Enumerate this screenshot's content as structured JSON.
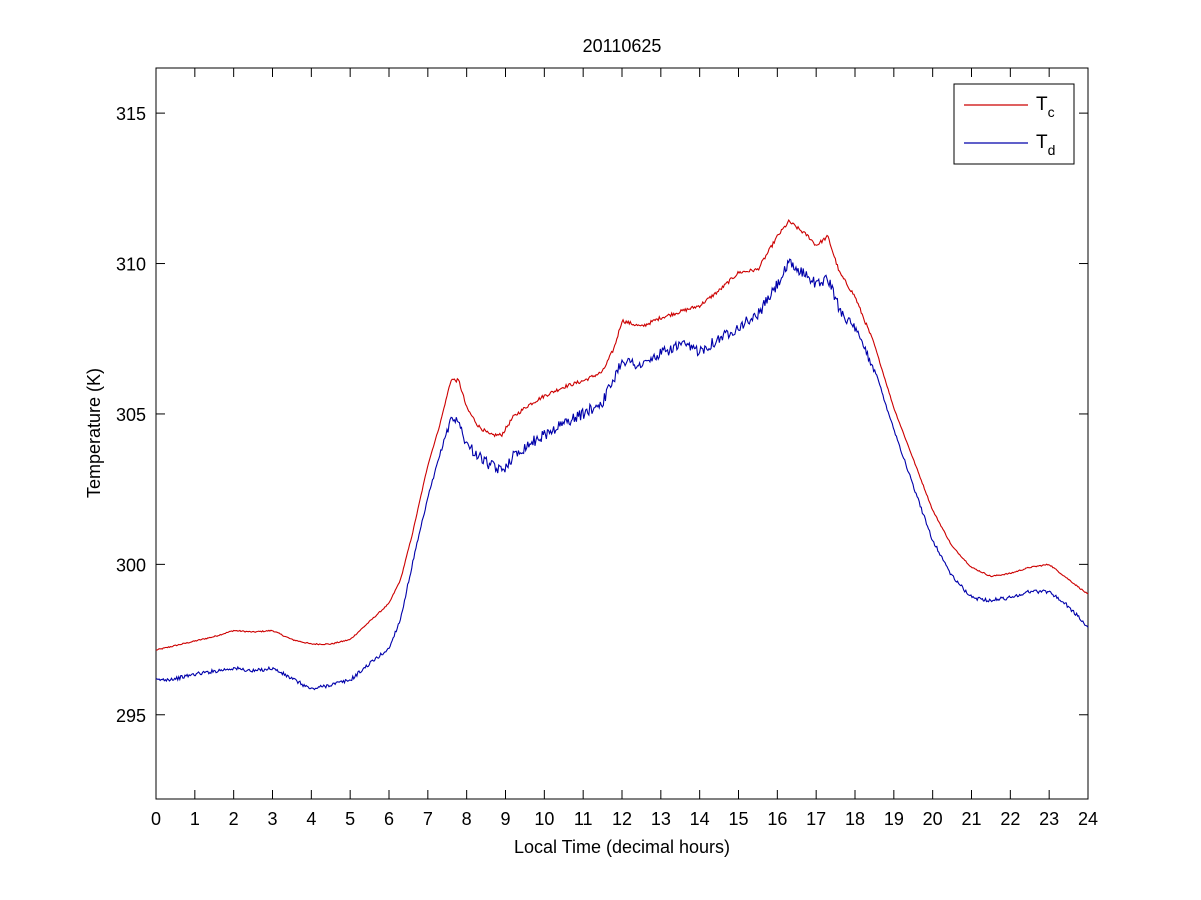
{
  "chart_data": {
    "type": "line",
    "title": "20110625",
    "xlabel": "Local Time (decimal hours)",
    "ylabel": "Temperature (K)",
    "xlim": [
      0,
      24
    ],
    "ylim": [
      292.2,
      316.5
    ],
    "xticks": [
      0,
      1,
      2,
      3,
      4,
      5,
      6,
      7,
      8,
      9,
      10,
      11,
      12,
      13,
      14,
      15,
      16,
      17,
      18,
      19,
      20,
      21,
      22,
      23,
      24
    ],
    "yticks": [
      295,
      300,
      305,
      310,
      315
    ],
    "grid": false,
    "legend_position": "top-right",
    "series": [
      {
        "name": "T",
        "subscript": "c",
        "color": "#cc0000",
        "noise": 0.06,
        "x": [
          0,
          0.5,
          1,
          1.5,
          2,
          2.5,
          3,
          3.5,
          4,
          4.5,
          5,
          5.5,
          6,
          6.3,
          6.6,
          7,
          7.3,
          7.6,
          7.8,
          8,
          8.3,
          8.6,
          8.9,
          9.2,
          9.6,
          10,
          10.5,
          11,
          11.5,
          11.8,
          12,
          12.5,
          13,
          13.5,
          14,
          14.5,
          15,
          15.5,
          16,
          16.3,
          16.5,
          16.8,
          17,
          17.3,
          17.6,
          18,
          18.5,
          19,
          19.5,
          20,
          20.5,
          21,
          21.5,
          22,
          22.5,
          23,
          23.5,
          24
        ],
        "y": [
          297.15,
          297.3,
          297.45,
          297.6,
          297.8,
          297.75,
          297.8,
          297.5,
          297.35,
          297.35,
          297.5,
          298.1,
          298.7,
          299.5,
          301.0,
          303.3,
          304.6,
          306.15,
          306.1,
          305.2,
          304.6,
          304.3,
          304.3,
          304.9,
          305.3,
          305.6,
          305.9,
          306.1,
          306.4,
          307.2,
          308.1,
          307.9,
          308.2,
          308.4,
          308.6,
          309.1,
          309.7,
          309.8,
          310.9,
          311.4,
          311.2,
          310.9,
          310.6,
          310.9,
          309.7,
          308.9,
          307.3,
          305.2,
          303.5,
          301.8,
          300.6,
          299.9,
          299.6,
          299.7,
          299.9,
          300.0,
          299.5,
          299.0
        ]
      },
      {
        "name": "T",
        "subscript": "d",
        "color": "#0000aa",
        "noise": 0.18,
        "x": [
          0,
          0.5,
          1,
          1.5,
          2,
          2.5,
          3,
          3.5,
          4,
          4.5,
          5,
          5.5,
          6,
          6.3,
          6.6,
          7,
          7.3,
          7.6,
          7.8,
          8,
          8.3,
          8.6,
          8.9,
          9.2,
          9.6,
          10,
          10.5,
          11,
          11.5,
          11.8,
          12,
          12.5,
          13,
          13.5,
          14,
          14.5,
          15,
          15.5,
          16,
          16.3,
          16.5,
          16.8,
          17,
          17.3,
          17.6,
          18,
          18.5,
          19,
          19.5,
          20,
          20.5,
          21,
          21.5,
          22,
          22.5,
          23,
          23.5,
          24
        ],
        "y": [
          296.15,
          296.2,
          296.35,
          296.45,
          296.55,
          296.45,
          296.55,
          296.2,
          295.85,
          296.0,
          296.15,
          296.7,
          297.2,
          298.2,
          300.0,
          302.2,
          303.6,
          304.9,
          304.7,
          304.0,
          303.6,
          303.3,
          303.1,
          303.6,
          304.0,
          304.3,
          304.7,
          305.0,
          305.4,
          306.2,
          306.8,
          306.6,
          307.0,
          307.3,
          307.1,
          307.5,
          307.9,
          308.3,
          309.3,
          310.0,
          309.8,
          309.6,
          309.3,
          309.5,
          308.5,
          307.8,
          306.5,
          304.5,
          302.6,
          300.8,
          299.6,
          298.9,
          298.8,
          298.9,
          299.1,
          299.1,
          298.6,
          297.9
        ]
      }
    ]
  }
}
